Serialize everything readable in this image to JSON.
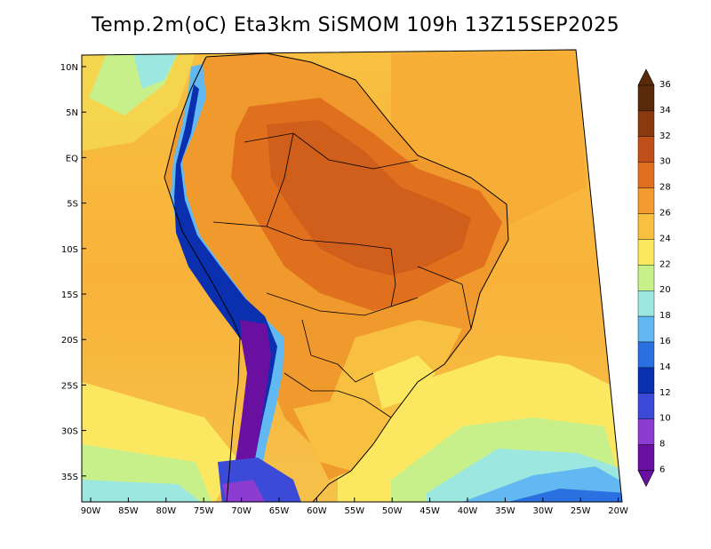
{
  "title": "Temp.2m(oC) Eta3km SiSMOM 109h 13Z15SEP2025",
  "map": {
    "region": "South America",
    "variable": "2 m temperature",
    "units": "oC",
    "lon_range": [
      -90,
      -20
    ],
    "lat_range": [
      -37,
      12
    ],
    "lat_ticks": [
      "10N",
      "5N",
      "EQ",
      "5S",
      "10S",
      "15S",
      "20S",
      "25S",
      "30S",
      "35S"
    ],
    "lon_ticks": [
      "90W",
      "85W",
      "80W",
      "75W",
      "70W",
      "65W",
      "60W",
      "55W",
      "50W",
      "45W",
      "40W",
      "35W",
      "30W",
      "25W",
      "20W"
    ]
  },
  "colorbar": {
    "labels": [
      "36",
      "34",
      "32",
      "30",
      "28",
      "26",
      "24",
      "22",
      "20",
      "18",
      "16",
      "14",
      "12",
      "10",
      "8",
      "6"
    ],
    "colors": [
      "#5a2a0a",
      "#8b3a10",
      "#c0501a",
      "#e0701e",
      "#f39a30",
      "#f8c040",
      "#fce860",
      "#c8f08a",
      "#9ce8e0",
      "#62b8f0",
      "#2a70e0",
      "#0a30b0",
      "#3c4ad8",
      "#8c3cd0",
      "#6a10a0"
    ]
  }
}
